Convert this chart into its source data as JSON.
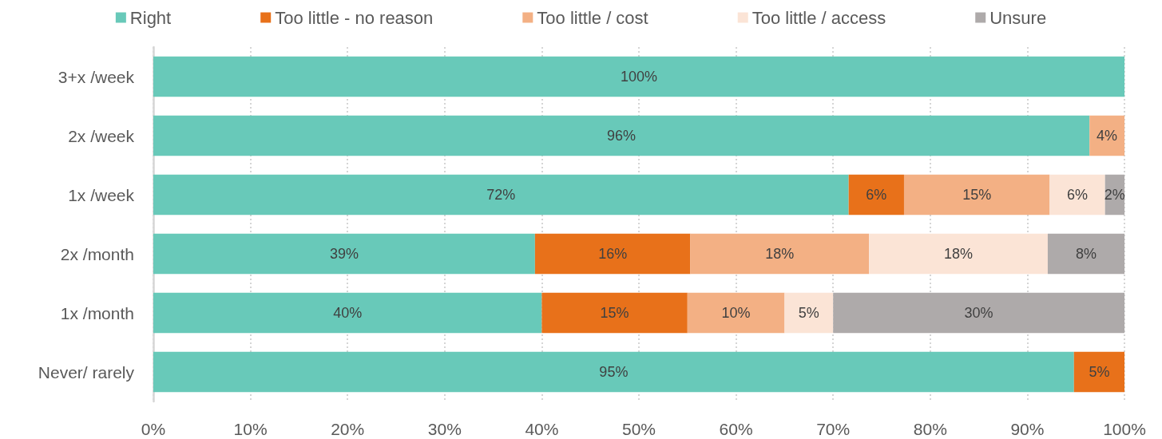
{
  "chart_data": {
    "type": "bar",
    "orientation": "horizontal",
    "stacked": true,
    "categories": [
      "3+x /week",
      "2x /week",
      "1x /week",
      "2x /month",
      "1x /month",
      "Never/ rarely"
    ],
    "series": [
      {
        "name": "Right",
        "color": "#68c9b9",
        "values": [
          100,
          96.4,
          71.6,
          39.3,
          40,
          94.8
        ],
        "value_labels": [
          "100%",
          "96%",
          "72%",
          "39%",
          "40%",
          "95%"
        ]
      },
      {
        "name": "Too little - no reason",
        "color": "#e8711a",
        "values": [
          null,
          null,
          5.7,
          16,
          15,
          5.2
        ],
        "value_labels": [
          null,
          null,
          "6%",
          "16%",
          "15%",
          "5%"
        ]
      },
      {
        "name": "Too little / cost",
        "color": "#f3b084",
        "values": [
          null,
          3.6,
          15,
          18.4,
          10,
          null
        ],
        "value_labels": [
          null,
          "4%",
          "15%",
          "18%",
          "10%",
          null
        ]
      },
      {
        "name": "Too little / access",
        "color": "#fbe4d6",
        "values": [
          null,
          null,
          5.7,
          18.4,
          5,
          null
        ],
        "value_labels": [
          null,
          null,
          "6%",
          "18%",
          "5%",
          null
        ]
      },
      {
        "name": "Unsure",
        "color": "#aeaaaa",
        "values": [
          null,
          null,
          2,
          7.9,
          30,
          null
        ],
        "value_labels": [
          null,
          null,
          "2%",
          "8%",
          "30%",
          null
        ]
      }
    ],
    "xlim": [
      0,
      100
    ],
    "xticks": [
      {
        "value": 0,
        "label": "0%"
      },
      {
        "value": 10,
        "label": "10%"
      },
      {
        "value": 20,
        "label": "20%"
      },
      {
        "value": 30,
        "label": "30%"
      },
      {
        "value": 40,
        "label": "40%"
      },
      {
        "value": 50,
        "label": "50%"
      },
      {
        "value": 60,
        "label": "60%"
      },
      {
        "value": 70,
        "label": "70%"
      },
      {
        "value": 80,
        "label": "80%"
      },
      {
        "value": 90,
        "label": "90%"
      },
      {
        "value": 100,
        "label": "100%"
      }
    ],
    "grid": "x",
    "legend": "top"
  }
}
